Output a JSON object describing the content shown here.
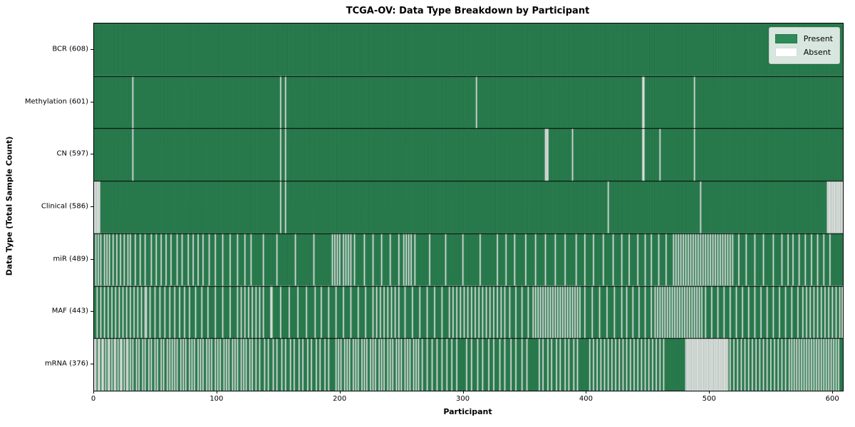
{
  "chart_data": {
    "type": "heatmap",
    "title": "TCGA-OV: Data Type Breakdown by Participant",
    "xlabel": "Participant",
    "ylabel": "Data Type (Total Sample Count)",
    "x_ticks": [
      0,
      100,
      200,
      300,
      400,
      500,
      600
    ],
    "xlim": [
      0,
      608
    ],
    "n_participants": 608,
    "grid": false,
    "legend": {
      "position": "upper right",
      "items": [
        {
          "label": "Present",
          "color": "#2e8b57"
        },
        {
          "label": "Absent",
          "color": "#ffffff"
        }
      ]
    },
    "colors": {
      "present": "#2e8b57",
      "absent": "#ffffff",
      "cell_edge": "rgba(0,0,0,0.32)",
      "row_border": "#000000",
      "legend_bg": "rgba(255,255,255,0.82)"
    },
    "rows": [
      {
        "label": "BCR (608)",
        "name": "BCR",
        "present_count": 608,
        "absent_participants": []
      },
      {
        "label": "Methylation (601)",
        "name": "Methylation",
        "present_count": 601,
        "absent_participants": [
          31,
          151,
          155,
          310,
          445,
          446,
          487
        ]
      },
      {
        "label": "CN (597)",
        "name": "CN",
        "present_count": 597,
        "absent_participants": [
          31,
          151,
          155,
          366,
          367,
          368,
          388,
          445,
          446,
          459,
          487
        ]
      },
      {
        "label": "Clinical (586)",
        "name": "Clinical",
        "present_count": 586,
        "absent_participants": [
          0,
          1,
          2,
          3,
          4,
          151,
          155,
          417,
          492,
          595,
          596,
          597,
          598,
          599,
          600,
          601,
          602,
          603,
          604,
          605,
          606,
          607
        ]
      },
      {
        "label": "miR (489)",
        "name": "miR",
        "present_count": 489,
        "absent_participants": [
          1,
          3,
          5,
          8,
          10,
          12,
          15,
          18,
          21,
          24,
          27,
          29,
          33,
          37,
          41,
          46,
          50,
          54,
          58,
          62,
          67,
          71,
          76,
          80,
          84,
          88,
          93,
          98,
          104,
          110,
          116,
          122,
          127,
          137,
          148,
          163,
          178,
          193,
          195,
          197,
          199,
          202,
          204,
          206,
          208,
          211,
          219,
          226,
          233,
          240,
          247,
          251,
          253,
          255,
          257,
          260,
          272,
          285,
          299,
          313,
          327,
          334,
          341,
          350,
          358,
          366,
          374,
          382,
          391,
          398,
          405,
          413,
          421,
          428,
          434,
          441,
          447,
          452,
          458,
          464,
          470,
          472,
          474,
          476,
          478,
          480,
          482,
          484,
          486,
          488,
          490,
          492,
          494,
          496,
          498,
          500,
          502,
          504,
          506,
          508,
          510,
          512,
          514,
          516,
          518,
          523,
          529,
          536,
          543,
          551,
          558,
          563,
          567,
          572,
          577,
          582,
          587,
          592,
          597
        ]
      },
      {
        "label": "MAF (443)",
        "name": "MAF",
        "present_count": 443,
        "absent_participants": [
          2,
          5,
          8,
          11,
          14,
          17,
          20,
          23,
          26,
          29,
          32,
          35,
          38,
          41,
          42,
          45,
          49,
          53,
          57,
          61,
          65,
          69,
          73,
          77,
          82,
          87,
          92,
          98,
          104,
          110,
          116,
          119,
          122,
          125,
          128,
          131,
          134,
          137,
          143,
          144,
          151,
          158,
          165,
          172,
          179,
          184,
          190,
          196,
          202,
          208,
          214,
          220,
          226,
          229,
          232,
          235,
          238,
          241,
          244,
          247,
          252,
          258,
          264,
          270,
          276,
          282,
          288,
          291,
          294,
          297,
          300,
          303,
          306,
          309,
          312,
          315,
          318,
          321,
          324,
          327,
          330,
          333,
          337,
          342,
          347,
          352,
          356,
          358,
          360,
          362,
          364,
          366,
          368,
          370,
          372,
          374,
          376,
          378,
          380,
          382,
          384,
          386,
          388,
          390,
          392,
          394,
          398,
          404,
          410,
          416,
          422,
          428,
          432,
          437,
          442,
          447,
          452,
          455,
          457,
          459,
          461,
          463,
          465,
          467,
          469,
          471,
          473,
          475,
          477,
          479,
          481,
          483,
          485,
          487,
          489,
          491,
          493,
          496,
          501,
          506,
          511,
          516,
          521,
          526,
          531,
          536,
          541,
          546,
          551,
          556,
          561,
          566,
          571,
          575,
          578,
          581,
          584,
          587,
          590,
          593,
          596,
          599,
          602,
          605,
          607
        ]
      },
      {
        "label": "mRNA (376)",
        "name": "mRNA",
        "present_count": 376,
        "absent_participants": [
          0,
          1,
          3,
          4,
          6,
          7,
          9,
          11,
          12,
          14,
          16,
          17,
          19,
          21,
          22,
          24,
          26,
          27,
          29,
          31,
          34,
          36,
          39,
          41,
          44,
          46,
          49,
          51,
          54,
          56,
          59,
          61,
          63,
          65,
          67,
          70,
          72,
          74,
          77,
          79,
          81,
          84,
          86,
          88,
          91,
          93,
          95,
          98,
          100,
          102,
          105,
          107,
          109,
          112,
          114,
          116,
          119,
          121,
          123,
          126,
          128,
          131,
          134,
          138,
          141,
          145,
          148,
          152,
          155,
          159,
          162,
          166,
          169,
          173,
          176,
          180,
          183,
          187,
          190,
          196,
          198,
          200,
          203,
          205,
          207,
          210,
          212,
          214,
          217,
          219,
          221,
          224,
          226,
          228,
          231,
          233,
          235,
          238,
          240,
          242,
          245,
          247,
          249,
          252,
          254,
          256,
          259,
          261,
          263,
          266,
          270,
          274,
          278,
          282,
          286,
          290,
          294,
          302,
          306,
          311,
          315,
          320,
          324,
          329,
          333,
          338,
          342,
          347,
          351,
          361,
          364,
          368,
          371,
          375,
          378,
          382,
          385,
          389,
          392,
          402,
          405,
          408,
          411,
          414,
          417,
          420,
          423,
          426,
          429,
          432,
          435,
          438,
          441,
          444,
          447,
          450,
          453,
          456,
          459,
          462,
          480,
          481,
          482,
          483,
          484,
          485,
          486,
          487,
          488,
          489,
          490,
          491,
          492,
          493,
          494,
          495,
          496,
          497,
          498,
          499,
          500,
          501,
          502,
          503,
          504,
          505,
          506,
          507,
          508,
          509,
          510,
          511,
          512,
          513,
          514,
          516,
          519,
          522,
          525,
          528,
          531,
          534,
          537,
          540,
          543,
          546,
          549,
          552,
          555,
          558,
          561,
          564,
          566,
          568,
          570,
          572,
          574,
          576,
          578,
          580,
          582,
          584,
          586,
          588,
          590,
          592,
          594,
          596,
          598,
          600,
          602,
          604
        ]
      }
    ]
  }
}
